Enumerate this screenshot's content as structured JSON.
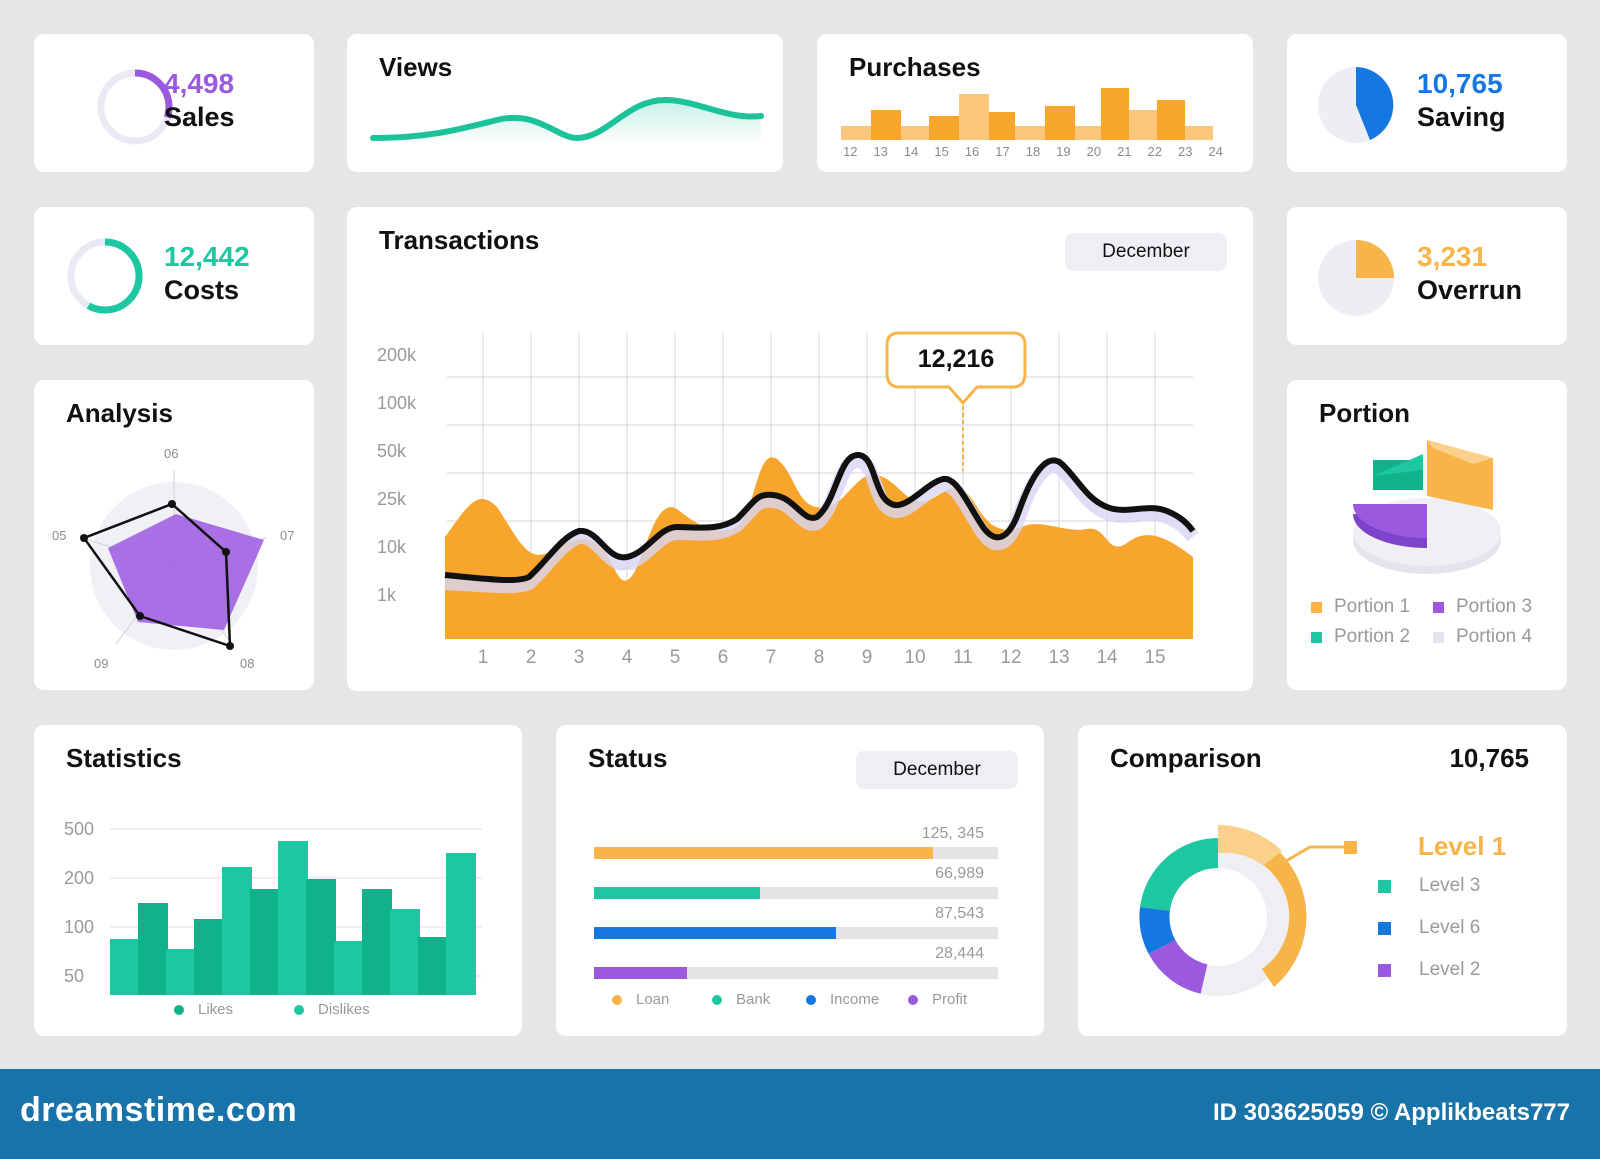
{
  "sales": {
    "value": "4,498",
    "label": "Sales",
    "fraction": 0.3,
    "color": "#9b59e0"
  },
  "views": {
    "title": "Views",
    "color": "#1cc29a"
  },
  "purchases": {
    "title": "Purchases",
    "color": "#f7a52c",
    "days": [
      "12",
      "13",
      "14",
      "15",
      "16",
      "17",
      "18",
      "19",
      "20",
      "21",
      "22",
      "23",
      "24"
    ]
  },
  "saving": {
    "value": "10,765",
    "label": "Saving",
    "fraction": 0.42,
    "color": "#1577e0"
  },
  "costs": {
    "value": "12,442",
    "label": "Costs",
    "fraction": 0.58,
    "color": "#1cc7a1"
  },
  "overrun": {
    "value": "3,231",
    "label": "Overrun",
    "fraction": 0.25,
    "color": "#f7b449"
  },
  "transactions": {
    "title": "Transactions",
    "month": "December",
    "tooltip": "12,216",
    "yticks": [
      "200k",
      "100k",
      "50k",
      "25k",
      "10k",
      "1k"
    ],
    "xticks": [
      "1",
      "2",
      "3",
      "4",
      "5",
      "6",
      "7",
      "8",
      "9",
      "10",
      "11",
      "12",
      "13",
      "14",
      "15"
    ]
  },
  "analysis": {
    "title": "Analysis",
    "axes": [
      "06",
      "07",
      "08",
      "09",
      "05"
    ]
  },
  "portion": {
    "title": "Portion",
    "legend": [
      {
        "label": "Portion 1",
        "color": "#f7b449"
      },
      {
        "label": "Portion 3",
        "color": "#9b59e0"
      },
      {
        "label": "Portion 2",
        "color": "#1cc7a1"
      },
      {
        "label": "Portion 4",
        "color": "#e4e4ec"
      }
    ]
  },
  "statistics": {
    "title": "Statistics",
    "yticks": [
      "500",
      "200",
      "100",
      "50"
    ],
    "legend": [
      {
        "label": "Likes",
        "color": "#0fb28a"
      },
      {
        "label": "Dislikes",
        "color": "#1cc7a1"
      }
    ]
  },
  "status": {
    "title": "Status",
    "month": "December",
    "bars": [
      {
        "value_label": "125, 345",
        "fraction": 0.84,
        "color": "#f7b449"
      },
      {
        "value_label": "66,989",
        "fraction": 0.41,
        "color": "#1cc7a1"
      },
      {
        "value_label": "87,543",
        "fraction": 0.6,
        "color": "#1577e0"
      },
      {
        "value_label": "28,444",
        "fraction": 0.23,
        "color": "#9b59e0"
      }
    ],
    "legend": [
      {
        "label": "Loan",
        "color": "#f7b449"
      },
      {
        "label": "Bank",
        "color": "#1cc7a1"
      },
      {
        "label": "Income",
        "color": "#1577e0"
      },
      {
        "label": "Profit",
        "color": "#9b59e0"
      }
    ]
  },
  "comparison": {
    "title": "Comparison",
    "value": "10,765",
    "levels": [
      {
        "label": "Level 1",
        "color": "#f7b449"
      },
      {
        "label": "Level 3",
        "color": "#1cc7a1"
      },
      {
        "label": "Level 6",
        "color": "#1577e0"
      },
      {
        "label": "Level 2",
        "color": "#9b59e0"
      }
    ]
  },
  "footer": {
    "brand": "dreamstime.com",
    "id_line": "ID 303625059 © Applikbeats777"
  }
}
